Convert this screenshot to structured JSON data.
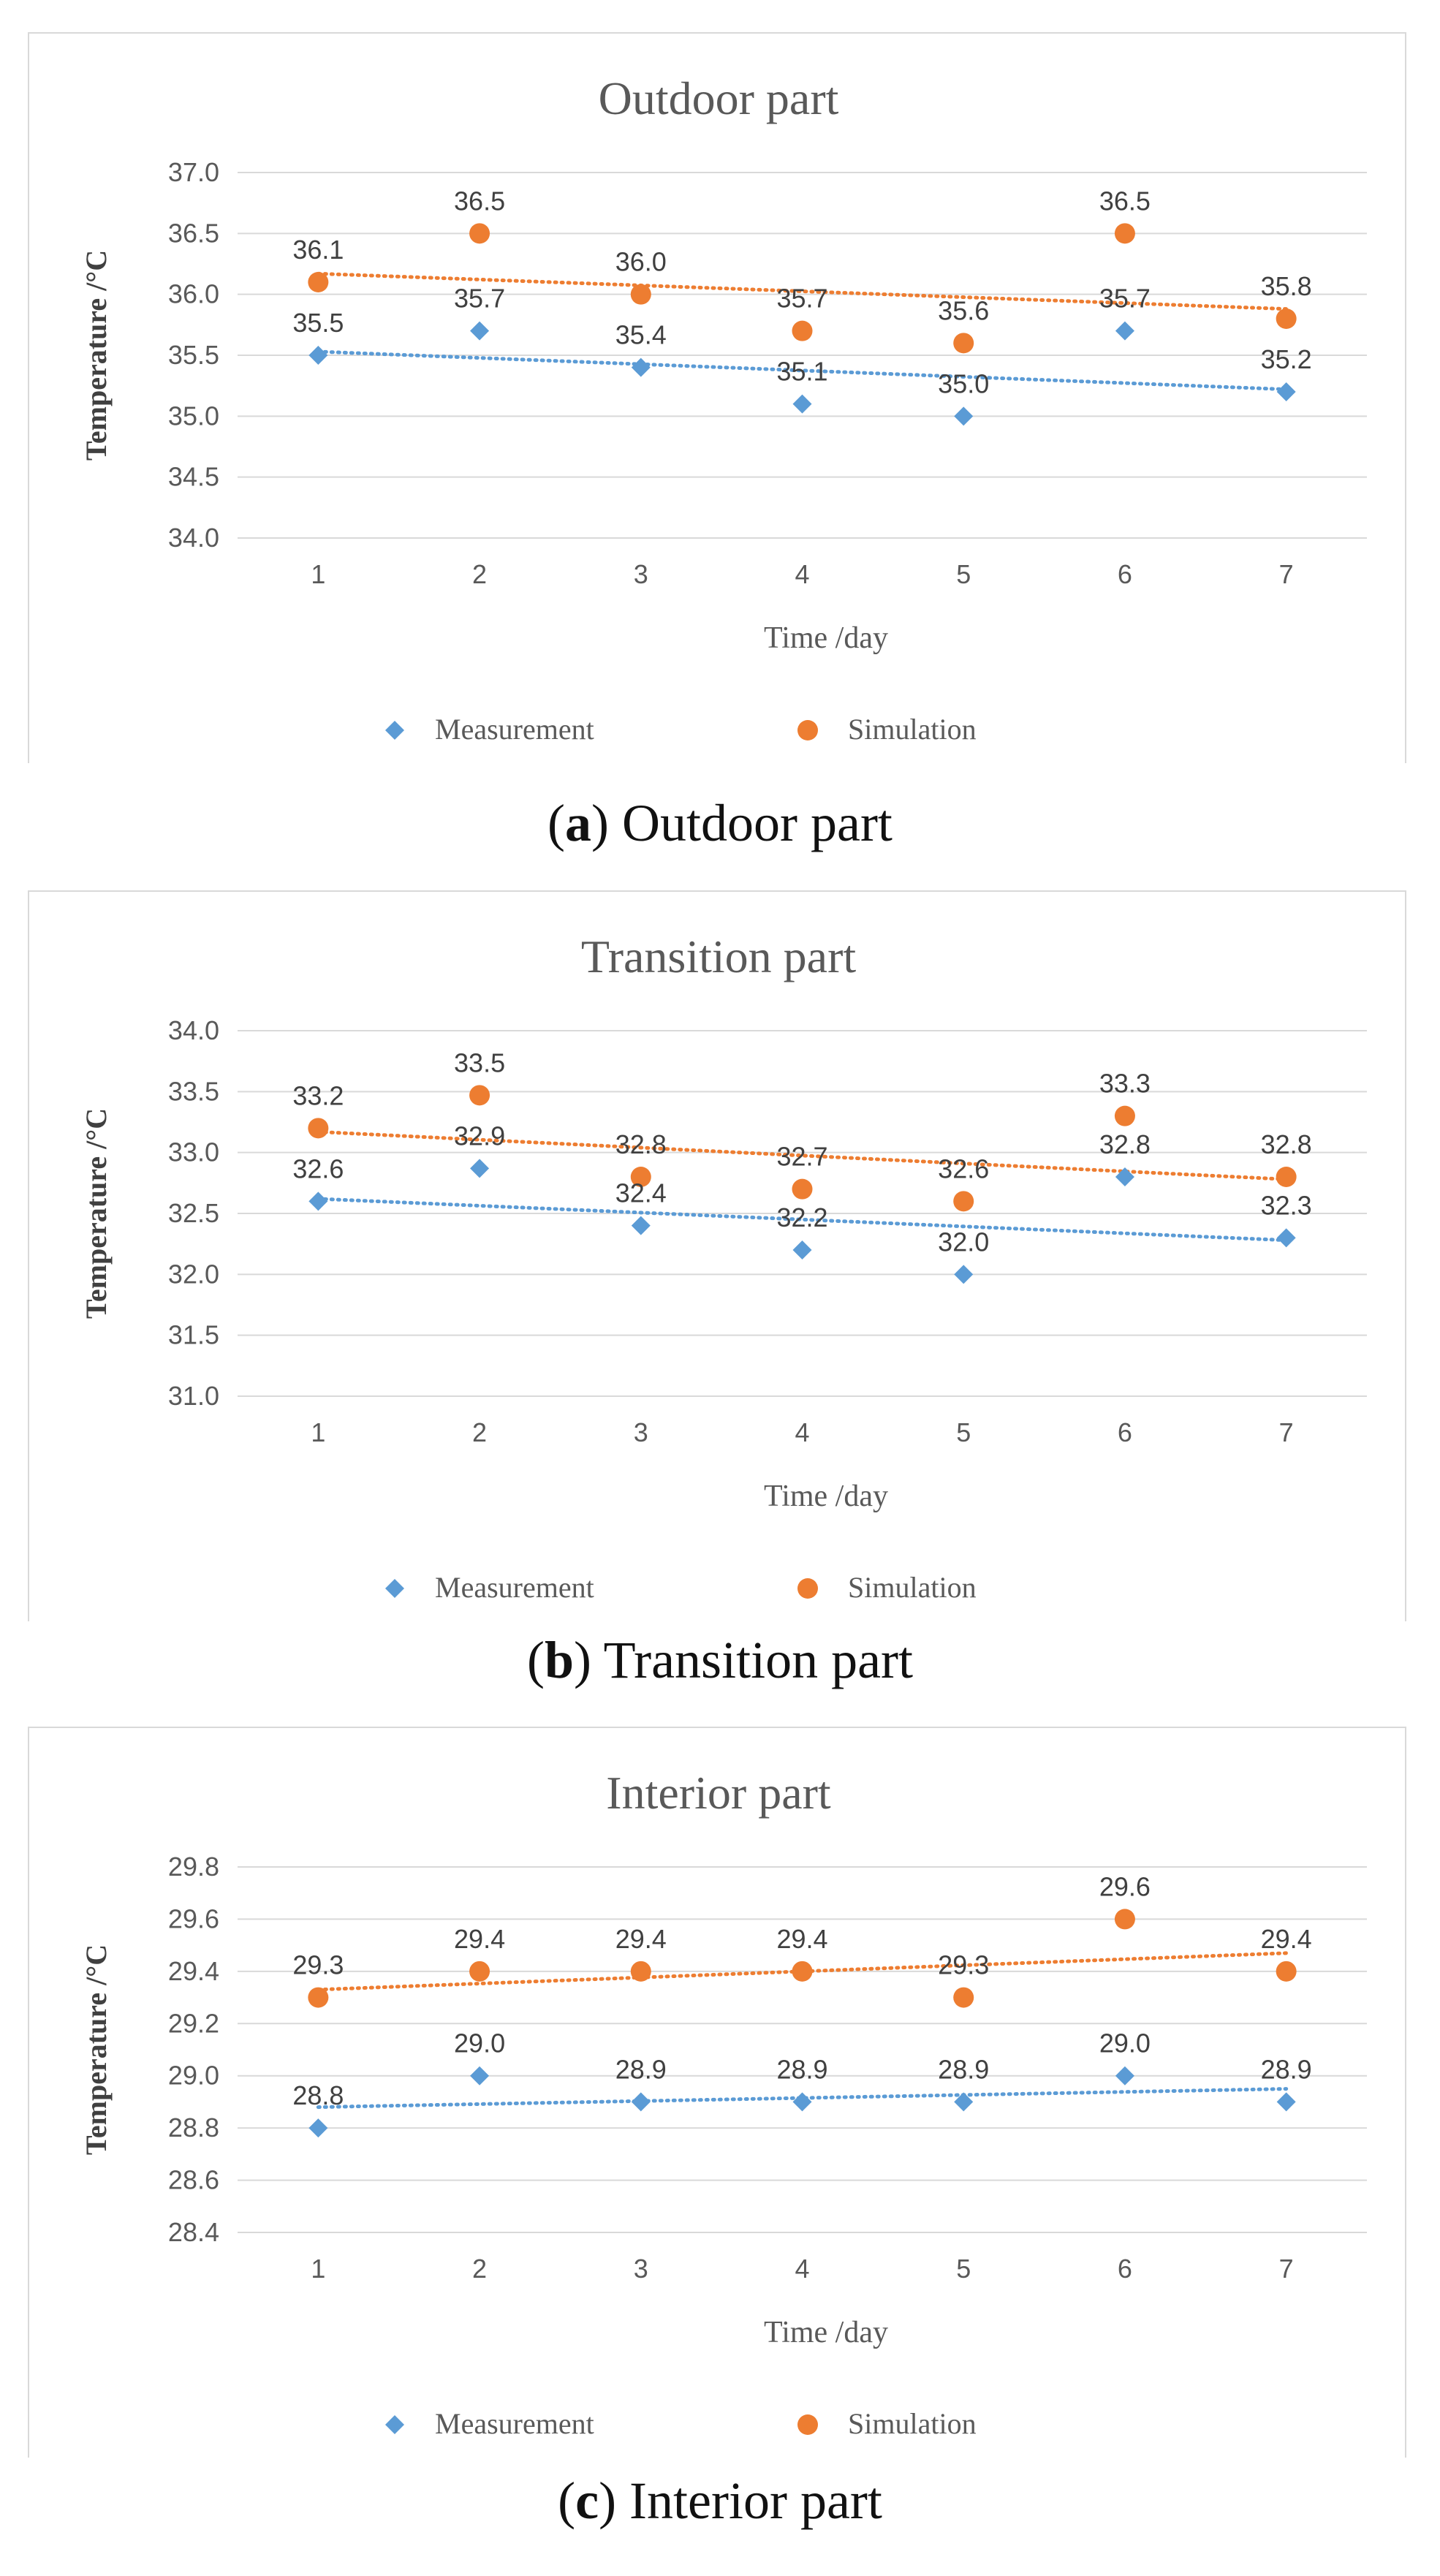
{
  "chart_data": [
    {
      "type": "scatter",
      "title": "Outdoor part",
      "xlabel": "Time /day",
      "ylabel": "Temperature /°C",
      "x": [
        1,
        2,
        3,
        4,
        5,
        6,
        7
      ],
      "ylim": [
        34.0,
        37.0
      ],
      "yticks": [
        "34.0",
        "34.5",
        "35.0",
        "35.5",
        "36.0",
        "36.5",
        "37.0"
      ],
      "grid": true,
      "legend": "bottom",
      "series": [
        {
          "name": "Measurement",
          "color": "#5b9bd5",
          "marker": "diamond",
          "values": [
            35.5,
            35.7,
            35.4,
            35.1,
            35.0,
            35.7,
            35.2
          ],
          "labels": [
            "35.5",
            "35.7",
            "35.4",
            "35.1",
            "35.0",
            "35.7",
            "35.2"
          ],
          "trend": [
            35.53,
            35.22
          ]
        },
        {
          "name": "Simulation",
          "color": "#ed7d31",
          "marker": "circle",
          "values": [
            36.1,
            36.5,
            36.0,
            35.7,
            35.6,
            36.5,
            35.8
          ],
          "labels": [
            "36.1",
            "36.5",
            "36.0",
            "35.7",
            "35.6",
            "36.5",
            "35.8"
          ],
          "trend": [
            36.17,
            35.88
          ]
        }
      ],
      "caption_letter": "a",
      "caption_text": "Outdoor part"
    },
    {
      "type": "scatter",
      "title": "Transition part",
      "xlabel": "Time /day",
      "ylabel": "Temperature /°C",
      "x": [
        1,
        2,
        3,
        4,
        5,
        6,
        7
      ],
      "ylim": [
        31.0,
        34.0
      ],
      "yticks": [
        "31.0",
        "31.5",
        "32.0",
        "32.5",
        "33.0",
        "33.5",
        "34.0"
      ],
      "grid": true,
      "legend": "bottom",
      "series": [
        {
          "name": "Measurement",
          "color": "#5b9bd5",
          "marker": "diamond",
          "values": [
            32.6,
            32.87,
            32.4,
            32.2,
            32.0,
            32.8,
            32.3
          ],
          "labels": [
            "32.6",
            "32.9",
            "32.4",
            "32.2",
            "32.0",
            "32.8",
            "32.3"
          ],
          "trend": [
            32.62,
            32.28
          ]
        },
        {
          "name": "Simulation",
          "color": "#ed7d31",
          "marker": "circle",
          "values": [
            33.2,
            33.47,
            32.8,
            32.7,
            32.6,
            33.3,
            32.8
          ],
          "labels": [
            "33.2",
            "33.5",
            "32.8",
            "32.7",
            "32.6",
            "33.3",
            "32.8"
          ],
          "trend": [
            33.17,
            32.78
          ]
        }
      ],
      "caption_letter": "b",
      "caption_text": "Transition part"
    },
    {
      "type": "scatter",
      "title": "Interior part",
      "xlabel": "Time /day",
      "ylabel": "Temperature /°C",
      "x": [
        1,
        2,
        3,
        4,
        5,
        6,
        7
      ],
      "ylim": [
        28.4,
        29.8
      ],
      "yticks": [
        "28.4",
        "28.6",
        "28.8",
        "29.0",
        "29.2",
        "29.4",
        "29.6",
        "29.8"
      ],
      "grid": true,
      "legend": "bottom",
      "series": [
        {
          "name": "Measurement",
          "color": "#5b9bd5",
          "marker": "diamond",
          "values": [
            28.8,
            29.0,
            28.9,
            28.9,
            28.9,
            29.0,
            28.9
          ],
          "labels": [
            "28.8",
            "29.0",
            "28.9",
            "28.9",
            "28.9",
            "29.0",
            "28.9"
          ],
          "trend": [
            28.88,
            28.95
          ]
        },
        {
          "name": "Simulation",
          "color": "#ed7d31",
          "marker": "circle",
          "values": [
            29.3,
            29.4,
            29.4,
            29.4,
            29.3,
            29.6,
            29.4
          ],
          "labels": [
            "29.3",
            "29.4",
            "29.4",
            "29.4",
            "29.3",
            "29.6",
            "29.4"
          ],
          "trend": [
            29.33,
            29.47
          ]
        }
      ],
      "caption_letter": "c",
      "caption_text": "Interior part"
    }
  ]
}
